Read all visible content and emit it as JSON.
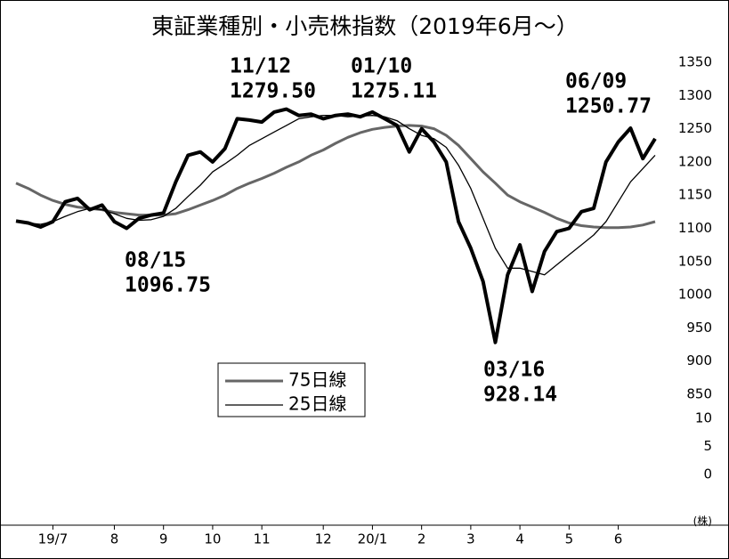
{
  "chart_data": {
    "type": "line",
    "title": "東証業種別・小売株指数（2019年6月～）",
    "categories": [
      null,
      null,
      null,
      "19/7",
      null,
      null,
      null,
      null,
      "8",
      null,
      null,
      null,
      "9",
      null,
      null,
      null,
      "10",
      null,
      null,
      null,
      "11",
      null,
      null,
      null,
      null,
      "12",
      null,
      null,
      null,
      "20/1",
      null,
      null,
      null,
      "2",
      null,
      null,
      null,
      "3",
      null,
      null,
      null,
      "4",
      null,
      null,
      null,
      "5",
      null,
      null,
      null,
      "6",
      null,
      null,
      null
    ],
    "series": [
      {
        "color": "#000000",
        "width": 4,
        "values": [
          1111,
          1108,
          1102,
          1110,
          1140,
          1145,
          1128,
          1135,
          1110,
          1100,
          1115,
          1120,
          1123,
          1170,
          1210,
          1215,
          1200,
          1220,
          1265,
          1263,
          1260,
          1275,
          1279.5,
          1270,
          1272,
          1265,
          1270,
          1272,
          1268,
          1275.11,
          1265,
          1255,
          1215,
          1250,
          1230,
          1200,
          1110,
          1070,
          1020,
          928.14,
          1030,
          1075,
          1005,
          1065,
          1095,
          1100,
          1125,
          1130,
          1200,
          1230,
          1250.77,
          1205,
          1235
        ]
      },
      {
        "name": "75日線",
        "color": "#666666",
        "width": 3,
        "values": [
          1168,
          1160,
          1150,
          1142,
          1136,
          1132,
          1130,
          1128,
          1124,
          1122,
          1120,
          1120,
          1120,
          1122,
          1128,
          1135,
          1142,
          1150,
          1160,
          1168,
          1175,
          1183,
          1192,
          1200,
          1210,
          1218,
          1228,
          1237,
          1244,
          1249,
          1252,
          1254,
          1255,
          1254,
          1250,
          1240,
          1225,
          1205,
          1185,
          1168,
          1150,
          1140,
          1132,
          1124,
          1115,
          1108,
          1104,
          1102,
          1101,
          1101,
          1102,
          1105,
          1110
        ]
      },
      {
        "name": "25日線",
        "color": "#000000",
        "width": 1.3,
        "values": [
          1110,
          1108,
          1106,
          1110,
          1118,
          1125,
          1130,
          1128,
          1122,
          1115,
          1112,
          1113,
          1118,
          1130,
          1148,
          1165,
          1185,
          1197,
          1210,
          1225,
          1235,
          1245,
          1255,
          1265,
          1268,
          1270,
          1270,
          1268,
          1269,
          1270,
          1268,
          1262,
          1250,
          1240,
          1235,
          1222,
          1195,
          1160,
          1115,
          1070,
          1040,
          1040,
          1035,
          1030,
          1045,
          1060,
          1075,
          1090,
          1110,
          1140,
          1170,
          1190,
          1210
        ]
      }
    ],
    "ylim": [
      850,
      1350
    ],
    "yticks": [
      850,
      900,
      950,
      1000,
      1050,
      1100,
      1150,
      1200,
      1250,
      1300,
      1350
    ],
    "y2lim": [
      0,
      10
    ],
    "y2ticks": [
      0,
      5,
      10
    ],
    "y2_unit": "(株)",
    "annotations": [
      {
        "date": "08/15",
        "value": "1096.75"
      },
      {
        "date": "11/12",
        "value": "1279.50"
      },
      {
        "date": "01/10",
        "value": "1275.11"
      },
      {
        "date": "03/16",
        "value": "928.14"
      },
      {
        "date": "06/09",
        "value": "1250.77"
      }
    ]
  }
}
